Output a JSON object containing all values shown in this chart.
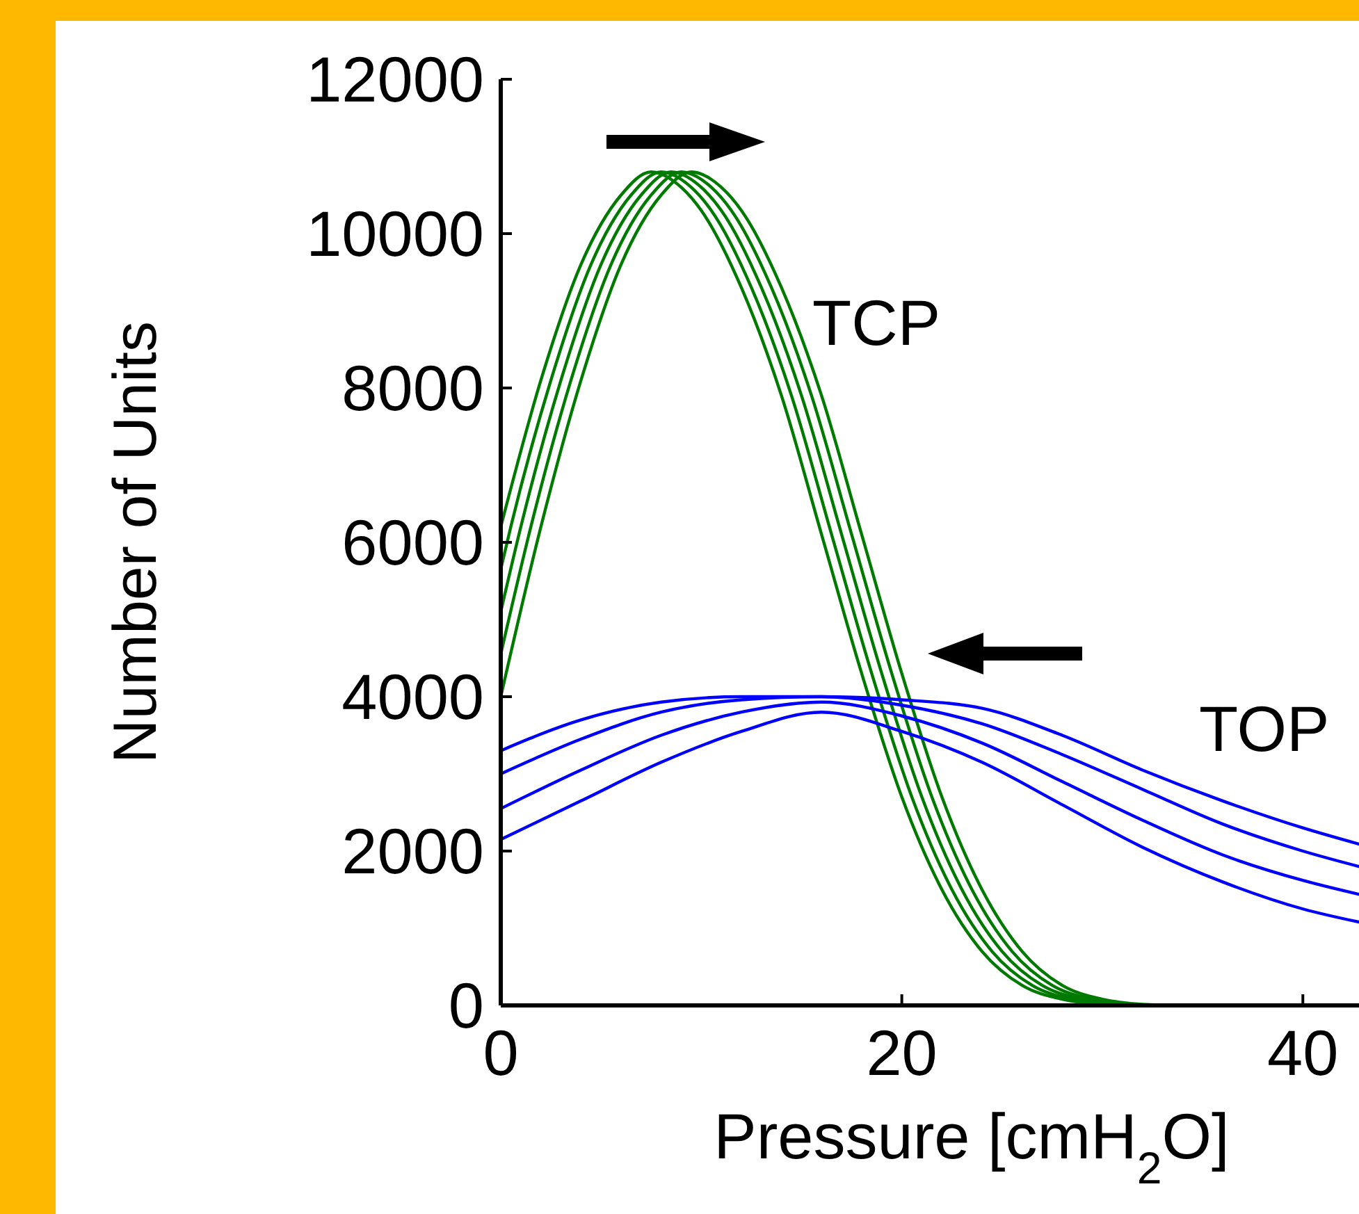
{
  "chart_data": {
    "type": "line",
    "xlabel": "Pressure  [cmH$_{2}$O]",
    "ylabel": "Number of Units",
    "xlim": [
      0,
      42.8
    ],
    "ylim": [
      0,
      12000
    ],
    "xticks": [
      0,
      20,
      40
    ],
    "yticks": [
      0,
      2000,
      4000,
      6000,
      8000,
      10000,
      12000
    ],
    "grid": false,
    "marker": "none",
    "line_style": "solid",
    "annotations": [
      "TCP",
      "TOP"
    ],
    "series": [
      {
        "color": "#007a00",
        "x": [
          0,
          2,
          4,
          6,
          7.5,
          9,
          10,
          12,
          14,
          16,
          18,
          20,
          22,
          24,
          26,
          28,
          30,
          32,
          42.8
        ],
        "values": [
          6200,
          8100,
          9600,
          10500,
          10800,
          10600,
          10300,
          9300,
          7900,
          6100,
          4300,
          2700,
          1500,
          700,
          260,
          80,
          15,
          0,
          0
        ]
      },
      {
        "color": "#007a00",
        "x": [
          0,
          0.5,
          2.5,
          4.5,
          6.5,
          8,
          9.5,
          10.5,
          12.5,
          14.5,
          16.5,
          18.5,
          20.5,
          22.5,
          24.5,
          26.5,
          28.5,
          30.5,
          32.5,
          42.8
        ],
        "values": [
          5650,
          6200,
          8100,
          9600,
          10500,
          10800,
          10600,
          10300,
          9300,
          7900,
          6100,
          4300,
          2700,
          1500,
          700,
          260,
          80,
          15,
          0,
          0
        ]
      },
      {
        "color": "#007a00",
        "x": [
          0,
          1,
          3,
          5,
          7,
          8.5,
          10,
          11,
          13,
          15,
          17,
          19,
          21,
          23,
          25,
          27,
          29,
          31,
          33,
          42.8
        ],
        "values": [
          5100,
          6200,
          8100,
          9600,
          10500,
          10800,
          10600,
          10300,
          9300,
          7900,
          6100,
          4300,
          2700,
          1500,
          700,
          260,
          80,
          15,
          0,
          0
        ]
      },
      {
        "color": "#007a00",
        "x": [
          0,
          1.5,
          3.5,
          5.5,
          7.5,
          9,
          10.5,
          11.5,
          13.5,
          15.5,
          17.5,
          19.5,
          21.5,
          23.5,
          25.5,
          27.5,
          29.5,
          31.5,
          33.5,
          42.8
        ],
        "values": [
          4550,
          6200,
          8100,
          9600,
          10500,
          10800,
          10600,
          10300,
          9300,
          7900,
          6100,
          4300,
          2700,
          1500,
          700,
          260,
          80,
          15,
          0,
          0
        ]
      },
      {
        "color": "#007a00",
        "x": [
          0,
          2,
          4,
          6,
          8,
          9.5,
          11,
          12,
          14,
          16,
          18,
          20,
          22,
          24,
          26,
          28,
          30,
          32,
          34,
          42.8
        ],
        "values": [
          4000,
          6200,
          8100,
          9600,
          10500,
          10800,
          10600,
          10300,
          9300,
          7900,
          6100,
          4300,
          2700,
          1500,
          700,
          260,
          80,
          15,
          0,
          0
        ]
      },
      {
        "color": "#0000ff",
        "x": [
          0,
          4,
          8,
          12,
          16,
          20,
          24,
          28,
          32,
          36,
          40,
          42.8
        ],
        "values": [
          3300,
          3700,
          3930,
          4000,
          4000,
          3960,
          3850,
          3500,
          3050,
          2650,
          2300,
          2090
        ]
      },
      {
        "color": "#0000ff",
        "x": [
          0,
          4,
          8,
          12,
          16,
          20,
          24,
          28,
          32,
          36,
          40,
          42.8
        ],
        "values": [
          3000,
          3450,
          3800,
          3960,
          4000,
          3890,
          3650,
          3250,
          2800,
          2350,
          2000,
          1800
        ]
      },
      {
        "color": "#0000ff",
        "x": [
          0,
          4,
          8,
          12,
          16,
          20,
          24,
          28,
          32,
          36,
          40,
          42.8
        ],
        "values": [
          2550,
          3050,
          3500,
          3800,
          3930,
          3750,
          3400,
          2900,
          2400,
          1950,
          1620,
          1440
        ]
      },
      {
        "color": "#0000ff",
        "x": [
          0,
          4,
          8,
          12,
          16,
          20,
          24,
          28,
          32,
          36,
          40,
          42.8
        ],
        "values": [
          2150,
          2650,
          3150,
          3550,
          3800,
          3550,
          3150,
          2600,
          2050,
          1600,
          1250,
          1080
        ]
      }
    ]
  }
}
